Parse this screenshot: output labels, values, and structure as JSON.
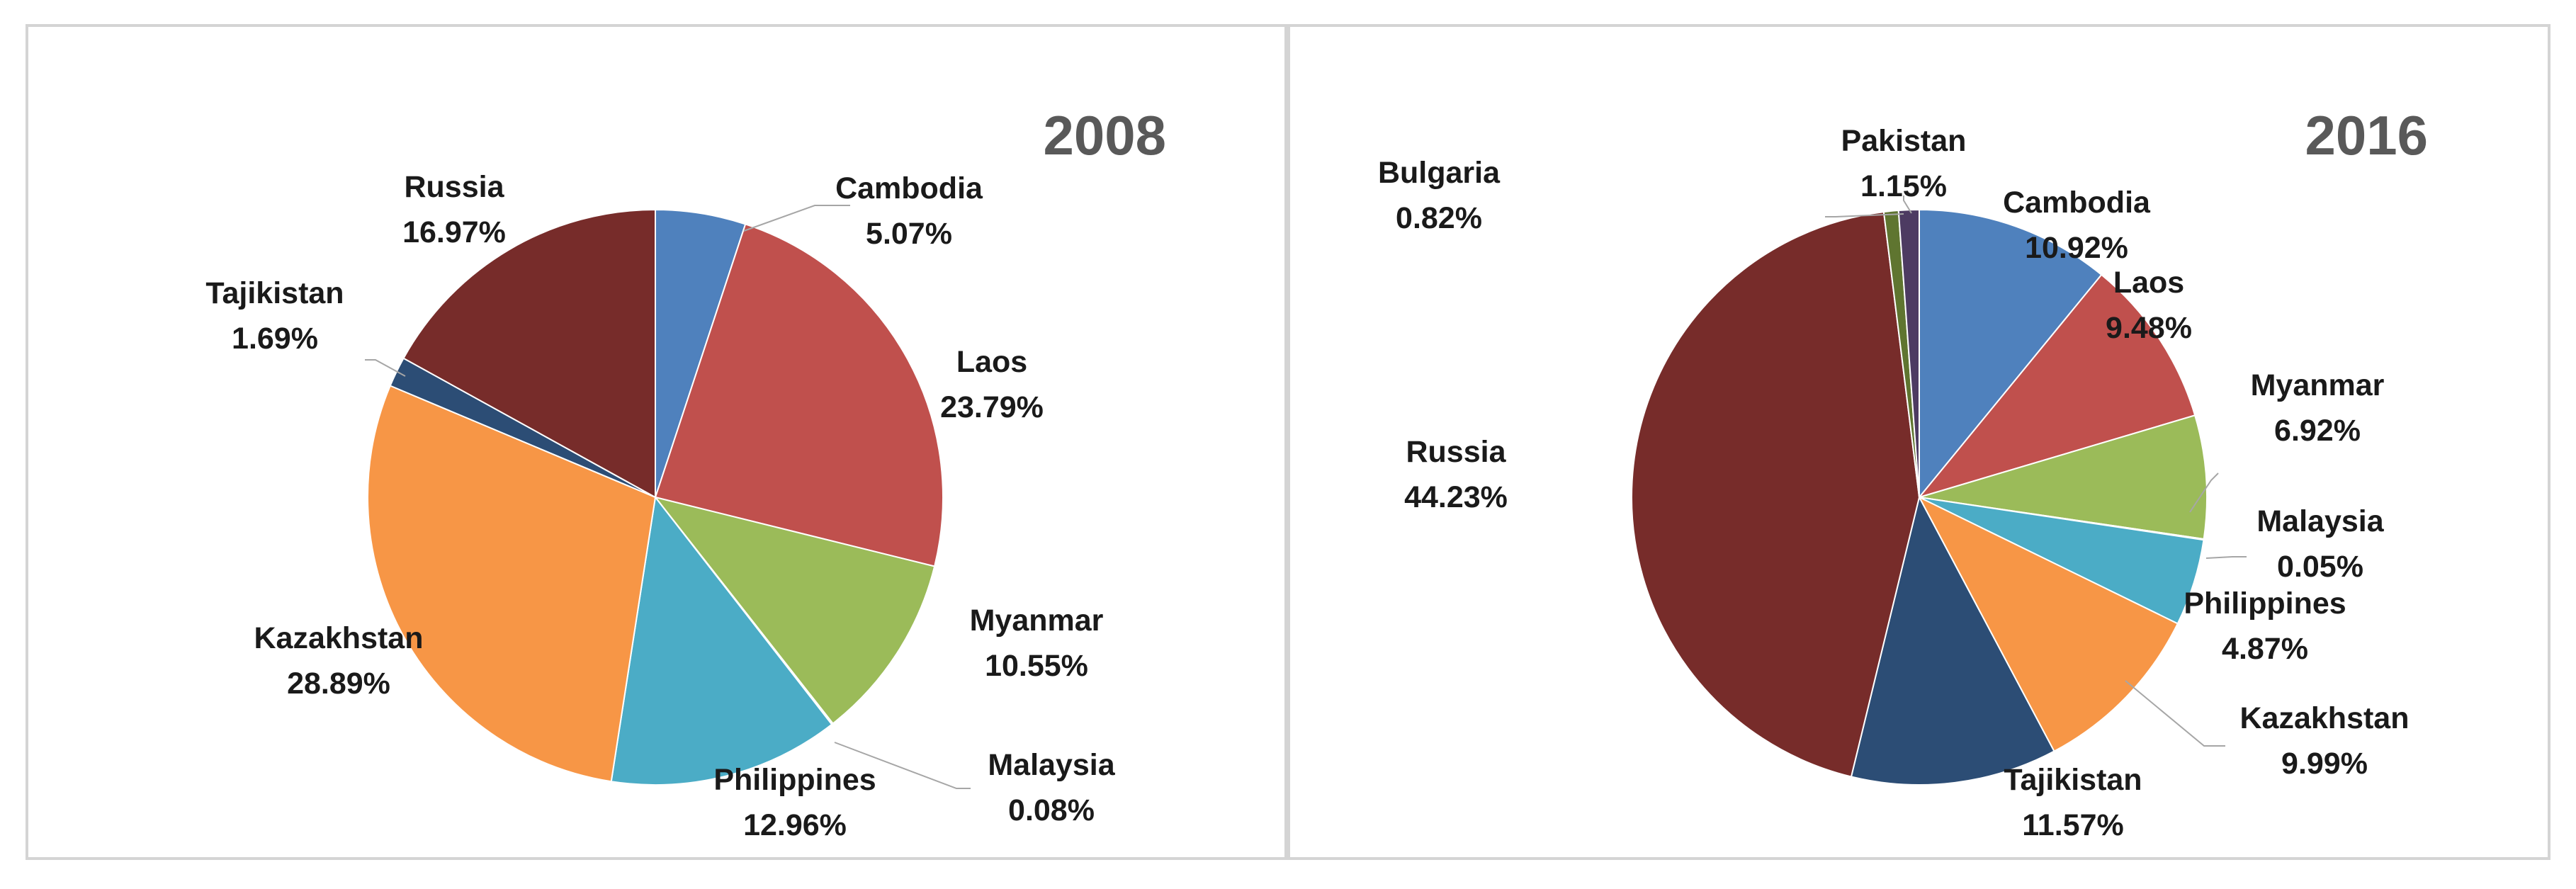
{
  "chart_data": [
    {
      "type": "pie",
      "title": "2008",
      "slices": [
        {
          "label": "Cambodia",
          "value": 5.07,
          "value_label": "5.07%",
          "color": "#4F81BD"
        },
        {
          "label": "Laos",
          "value": 23.79,
          "value_label": "23.79%",
          "color": "#C0504D"
        },
        {
          "label": "Myanmar",
          "value": 10.55,
          "value_label": "10.55%",
          "color": "#9BBB59"
        },
        {
          "label": "Malaysia",
          "value": 0.08,
          "value_label": "0.08%",
          "color": "#8064A2"
        },
        {
          "label": "Philippines",
          "value": 12.96,
          "value_label": "12.96%",
          "color": "#4BACC6"
        },
        {
          "label": "Kazakhstan",
          "value": 28.89,
          "value_label": "28.89%",
          "color": "#F79646"
        },
        {
          "label": "Tajikistan",
          "value": 1.69,
          "value_label": "1.69%",
          "color": "#2C4D75"
        },
        {
          "label": "Russia",
          "value": 16.97,
          "value_label": "16.97%",
          "color": "#772C2A"
        }
      ]
    },
    {
      "type": "pie",
      "title": "2016",
      "slices": [
        {
          "label": "Cambodia",
          "value": 10.92,
          "value_label": "10.92%",
          "color": "#4F81BD"
        },
        {
          "label": "Laos",
          "value": 9.48,
          "value_label": "9.48%",
          "color": "#C0504D"
        },
        {
          "label": "Myanmar",
          "value": 6.92,
          "value_label": "6.92%",
          "color": "#9BBB59"
        },
        {
          "label": "Malaysia",
          "value": 0.05,
          "value_label": "0.05%",
          "color": "#8064A2"
        },
        {
          "label": "Philippines",
          "value": 4.87,
          "value_label": "4.87%",
          "color": "#4BACC6"
        },
        {
          "label": "Kazakhstan",
          "value": 9.99,
          "value_label": "9.99%",
          "color": "#F79646"
        },
        {
          "label": "Tajikistan",
          "value": 11.57,
          "value_label": "11.57%",
          "color": "#2C4D75"
        },
        {
          "label": "Russia",
          "value": 44.23,
          "value_label": "44.23%",
          "color": "#772C2A"
        },
        {
          "label": "Bulgaria",
          "value": 0.82,
          "value_label": "0.82%",
          "color": "#5F7530"
        },
        {
          "label": "Pakistan",
          "value": 1.15,
          "value_label": "1.15%",
          "color": "#4D3B62"
        }
      ]
    }
  ]
}
